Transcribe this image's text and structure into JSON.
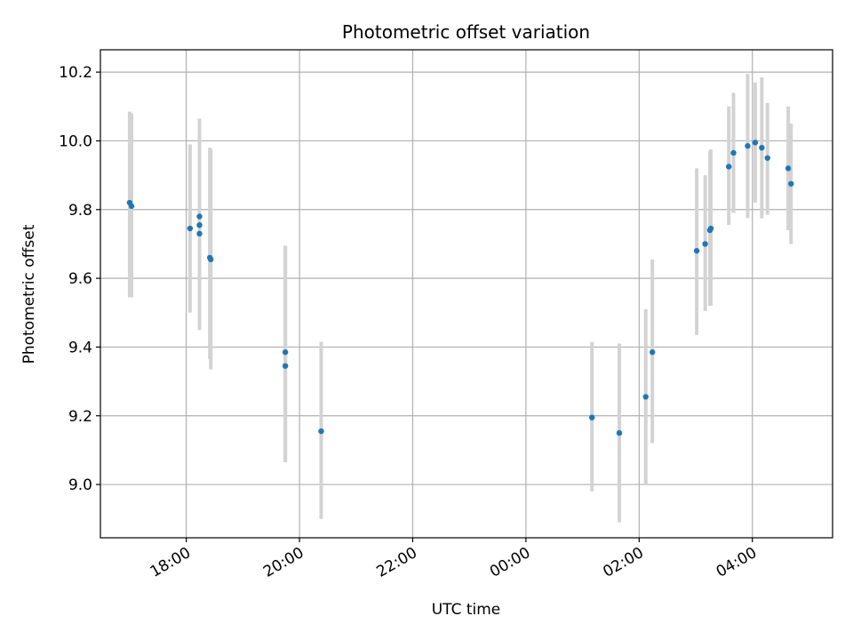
{
  "chart_data": {
    "type": "scatter",
    "title": "Photometric offset variation",
    "xlabel": "UTC time",
    "ylabel": "Photometric offset",
    "x_tick_labels": [
      "18:00",
      "20:00",
      "22:00",
      "00:00",
      "02:00",
      "04:00"
    ],
    "y_tick_labels": [
      "9.0",
      "9.2",
      "9.4",
      "9.6",
      "9.8",
      "10.0",
      "10.2"
    ],
    "y_ticks": [
      9.0,
      9.2,
      9.4,
      9.6,
      9.8,
      10.0,
      10.2
    ],
    "x_ticks": [
      "18:00",
      "20:00",
      "22:00",
      "00:00",
      "02:00",
      "04:00"
    ],
    "xlim": [
      "16:29",
      "05:25"
    ],
    "ylim": [
      8.845,
      10.265
    ],
    "grid": true,
    "colors": {
      "points": "#1f77b4",
      "errorbars": "#d3d3d3",
      "grid": "#b0b0b0"
    },
    "points": [
      {
        "x": "17:00",
        "y": 9.82,
        "yerr_low": 9.545,
        "yerr_high": 10.085
      },
      {
        "x": "17:02",
        "y": 9.81,
        "yerr_low": 9.545,
        "yerr_high": 10.08
      },
      {
        "x": "18:04",
        "y": 9.745,
        "yerr_low": 9.5,
        "yerr_high": 9.99
      },
      {
        "x": "18:14",
        "y": 9.78,
        "yerr_low": 9.46,
        "yerr_high": 10.065
      },
      {
        "x": "18:14",
        "y": 9.755,
        "yerr_low": 9.46,
        "yerr_high": 10.06
      },
      {
        "x": "18:14",
        "y": 9.73,
        "yerr_low": 9.45,
        "yerr_high": 10.05
      },
      {
        "x": "18:25",
        "y": 9.66,
        "yerr_low": 9.365,
        "yerr_high": 9.98
      },
      {
        "x": "18:26",
        "y": 9.655,
        "yerr_low": 9.335,
        "yerr_high": 9.975
      },
      {
        "x": "19:45",
        "y": 9.385,
        "yerr_low": 9.065,
        "yerr_high": 9.695
      },
      {
        "x": "19:45",
        "y": 9.345,
        "yerr_low": 9.07,
        "yerr_high": 9.69
      },
      {
        "x": "20:23",
        "y": 9.155,
        "yerr_low": 8.9,
        "yerr_high": 9.415
      },
      {
        "x": "01:10",
        "y": 9.195,
        "yerr_low": 8.98,
        "yerr_high": 9.415
      },
      {
        "x": "01:39",
        "y": 9.15,
        "yerr_low": 8.89,
        "yerr_high": 9.41
      },
      {
        "x": "02:07",
        "y": 9.255,
        "yerr_low": 9.0,
        "yerr_high": 9.51
      },
      {
        "x": "02:14",
        "y": 9.385,
        "yerr_low": 9.12,
        "yerr_high": 9.655
      },
      {
        "x": "03:01",
        "y": 9.68,
        "yerr_low": 9.435,
        "yerr_high": 9.92
      },
      {
        "x": "03:10",
        "y": 9.7,
        "yerr_low": 9.505,
        "yerr_high": 9.9
      },
      {
        "x": "03:15",
        "y": 9.74,
        "yerr_low": 9.52,
        "yerr_high": 9.97
      },
      {
        "x": "03:16",
        "y": 9.745,
        "yerr_low": 9.52,
        "yerr_high": 9.975
      },
      {
        "x": "03:35",
        "y": 9.925,
        "yerr_low": 9.755,
        "yerr_high": 10.1
      },
      {
        "x": "03:40",
        "y": 9.965,
        "yerr_low": 9.79,
        "yerr_high": 10.14
      },
      {
        "x": "03:55",
        "y": 9.985,
        "yerr_low": 9.775,
        "yerr_high": 10.195
      },
      {
        "x": "04:03",
        "y": 9.995,
        "yerr_low": 9.82,
        "yerr_high": 10.17
      },
      {
        "x": "04:10",
        "y": 9.98,
        "yerr_low": 9.775,
        "yerr_high": 10.185
      },
      {
        "x": "04:16",
        "y": 9.95,
        "yerr_low": 9.785,
        "yerr_high": 10.11
      },
      {
        "x": "04:38",
        "y": 9.92,
        "yerr_low": 9.74,
        "yerr_high": 10.1
      },
      {
        "x": "04:41",
        "y": 9.875,
        "yerr_low": 9.7,
        "yerr_high": 10.05
      }
    ]
  }
}
